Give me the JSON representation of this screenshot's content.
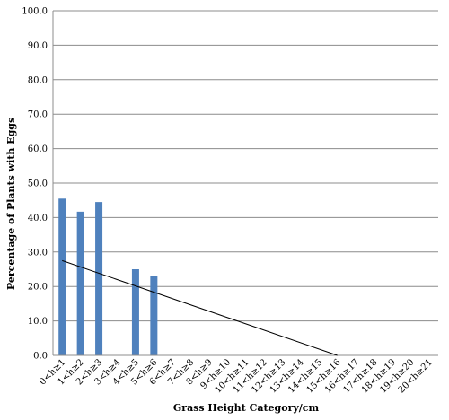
{
  "chart_data": {
    "type": "bar",
    "title": "",
    "xlabel": "Grass Height Category/cm",
    "ylabel": "Percentage of Plants with Eggs",
    "ylim": [
      0,
      100
    ],
    "yticks": [
      "0.0",
      "10.0",
      "20.0",
      "30.0",
      "40.0",
      "50.0",
      "60.0",
      "70.0",
      "80.0",
      "90.0",
      "100.0"
    ],
    "grid": true,
    "legend": "none",
    "bar_color": "#4f81bd",
    "categories": [
      "0<h≥1",
      "1<h≥2",
      "2<h≥3",
      "3<h≥4",
      "4<h≥5",
      "5<h≥6",
      "6<h≥7",
      "7<h≥8",
      "8<h≥9",
      "9<h≥10",
      "10<h≥11",
      "11<h≥12",
      "12<h≥13",
      "13<h≥14",
      "14<h≥15",
      "15<h≥16",
      "16<h≥17",
      "17<h≥18",
      "18<h≥19",
      "19<h≥20",
      "20<h≥21"
    ],
    "values": [
      45.5,
      41.7,
      44.5,
      0,
      25.0,
      23.0,
      0,
      0,
      0,
      0,
      0,
      0,
      0,
      0,
      0,
      0,
      0,
      0,
      0,
      0,
      0
    ],
    "trendline": {
      "type": "linear",
      "start": {
        "category": "0<h≥1",
        "y": 27.5
      },
      "end": {
        "category": "15<h≥16",
        "y": 0
      }
    }
  }
}
